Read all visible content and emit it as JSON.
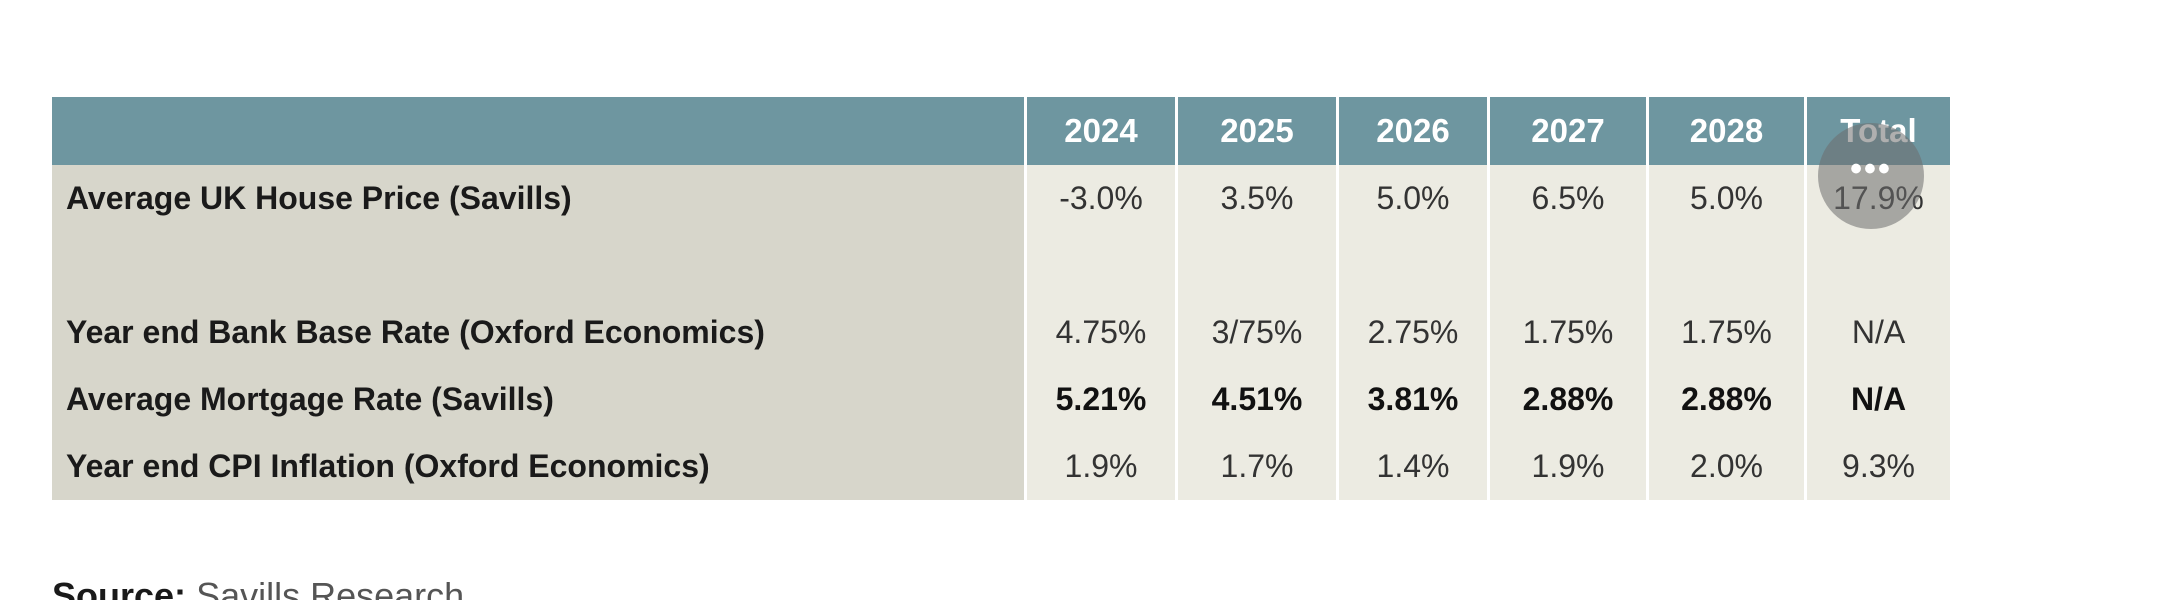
{
  "table": {
    "header": {
      "label": "",
      "years": [
        "2024",
        "2025",
        "2026",
        "2027",
        "2028",
        "Total"
      ]
    },
    "rows": [
      {
        "label": "Average UK House Price (Savills)",
        "values": [
          "-3.0%",
          "3.5%",
          "5.0%",
          "6.5%",
          "5.0%",
          "17.9%"
        ]
      },
      {
        "label": "Year end Bank Base Rate (Oxford Economics)",
        "values": [
          "4.75%",
          "3/75%",
          "2.75%",
          "1.75%",
          "1.75%",
          "N/A"
        ]
      },
      {
        "label": "Average Mortgage Rate (Savills)",
        "values": [
          "5.21%",
          "4.51%",
          "3.81%",
          "2.88%",
          "2.88%",
          "N/A"
        ]
      },
      {
        "label": "Year end CPI Inflation (Oxford Economics)",
        "values": [
          "1.9%",
          "1.7%",
          "1.4%",
          "1.9%",
          "2.0%",
          "9.3%"
        ]
      }
    ]
  },
  "overlay": {
    "icon": "more-horizontal-icon",
    "glyph": "•••"
  },
  "source": {
    "label": "Source:",
    "value": "Savills Research"
  },
  "colors": {
    "header_bg": "#6e96a0",
    "label_bg": "#d7d6cb",
    "cell_bg": "#ecebe2"
  }
}
